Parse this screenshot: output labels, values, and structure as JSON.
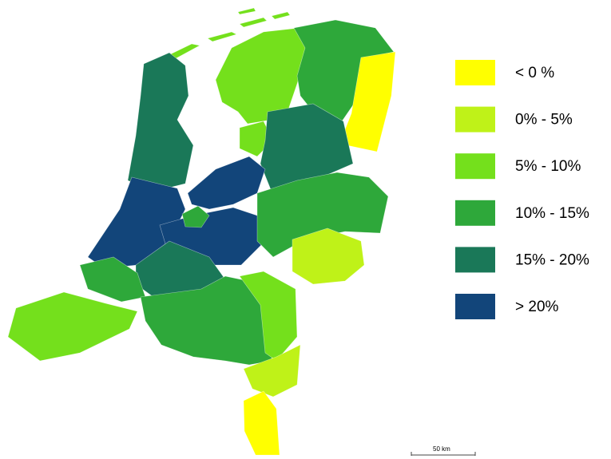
{
  "legend": {
    "items": [
      {
        "label": "< 0 %",
        "color": "#ffff00"
      },
      {
        "label": "0% - 5%",
        "color": "#bff218"
      },
      {
        "label": "5% - 10%",
        "color": "#74e01c"
      },
      {
        "label": "10% - 15%",
        "color": "#2ea83a"
      },
      {
        "label": "15% - 20%",
        "color": "#1a7858"
      },
      {
        "label": "> 20%",
        "color": "#12457a"
      }
    ]
  },
  "scale_bar": {
    "label": "50 km"
  }
}
